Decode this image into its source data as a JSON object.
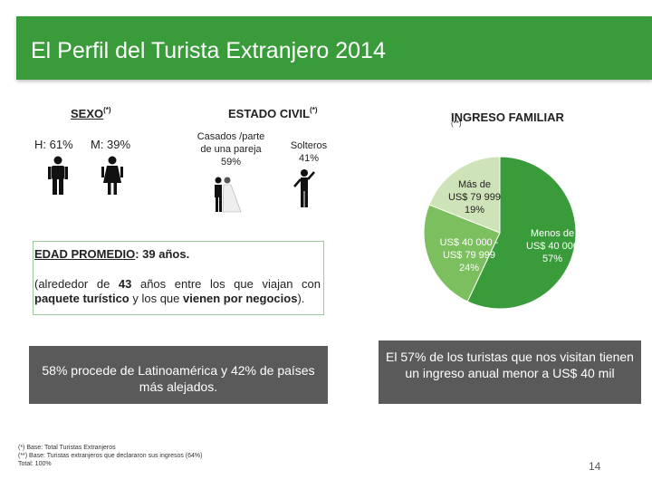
{
  "header": {
    "title": "El Perfil del Turista Extranjero 2014"
  },
  "sexo": {
    "title": "SEXO",
    "sup": "(*)",
    "male": "H: 61%",
    "female": "M: 39%"
  },
  "estado": {
    "title": "ESTADO CIVIL",
    "sup": "(*)",
    "casados": [
      "Casados /parte",
      "de una pareja",
      "59%"
    ],
    "solteros": [
      "Solteros",
      "41%"
    ]
  },
  "ingreso": {
    "title": "INGRESO FAMILIAR",
    "sup": "(**)",
    "summary": "El 57% de los turistas que nos visitan tienen un ingreso anual menor a US$ 40 mil"
  },
  "edad": {
    "label": "EDAD PROMEDIO",
    "value": ": 39 años.",
    "detail_pre": "(alrededor de ",
    "detail_num": "43",
    "detail_mid": " años entre los que viajan con ",
    "detail_bold": "paquete turístico",
    "detail_mid2": " y los que ",
    "detail_bold2": "vienen por negocios",
    "detail_end": ")."
  },
  "origin": {
    "text": "58% procede de Latinoamérica y 42% de países más alejados."
  },
  "notes": [
    "(*) Base: Total Turistas Extranjeros",
    "(**) Base: Turistas extranjeros que declararon sus ingresos (64%)",
    "Total: 100%"
  ],
  "page_number": "14",
  "chart_data": {
    "type": "pie",
    "slices": [
      {
        "label_lines": [
          "Menos de",
          "US$ 40 000",
          "57%"
        ],
        "value": 57,
        "color": "#3a9b3a"
      },
      {
        "label_lines": [
          "US$ 40 000 -",
          "US$ 79 999",
          "24%"
        ],
        "value": 24,
        "color": "#7cbf5e"
      },
      {
        "label_lines": [
          "Más de",
          "US$ 79 999",
          "19%"
        ],
        "value": 19,
        "color": "#cfe3b8"
      }
    ]
  }
}
